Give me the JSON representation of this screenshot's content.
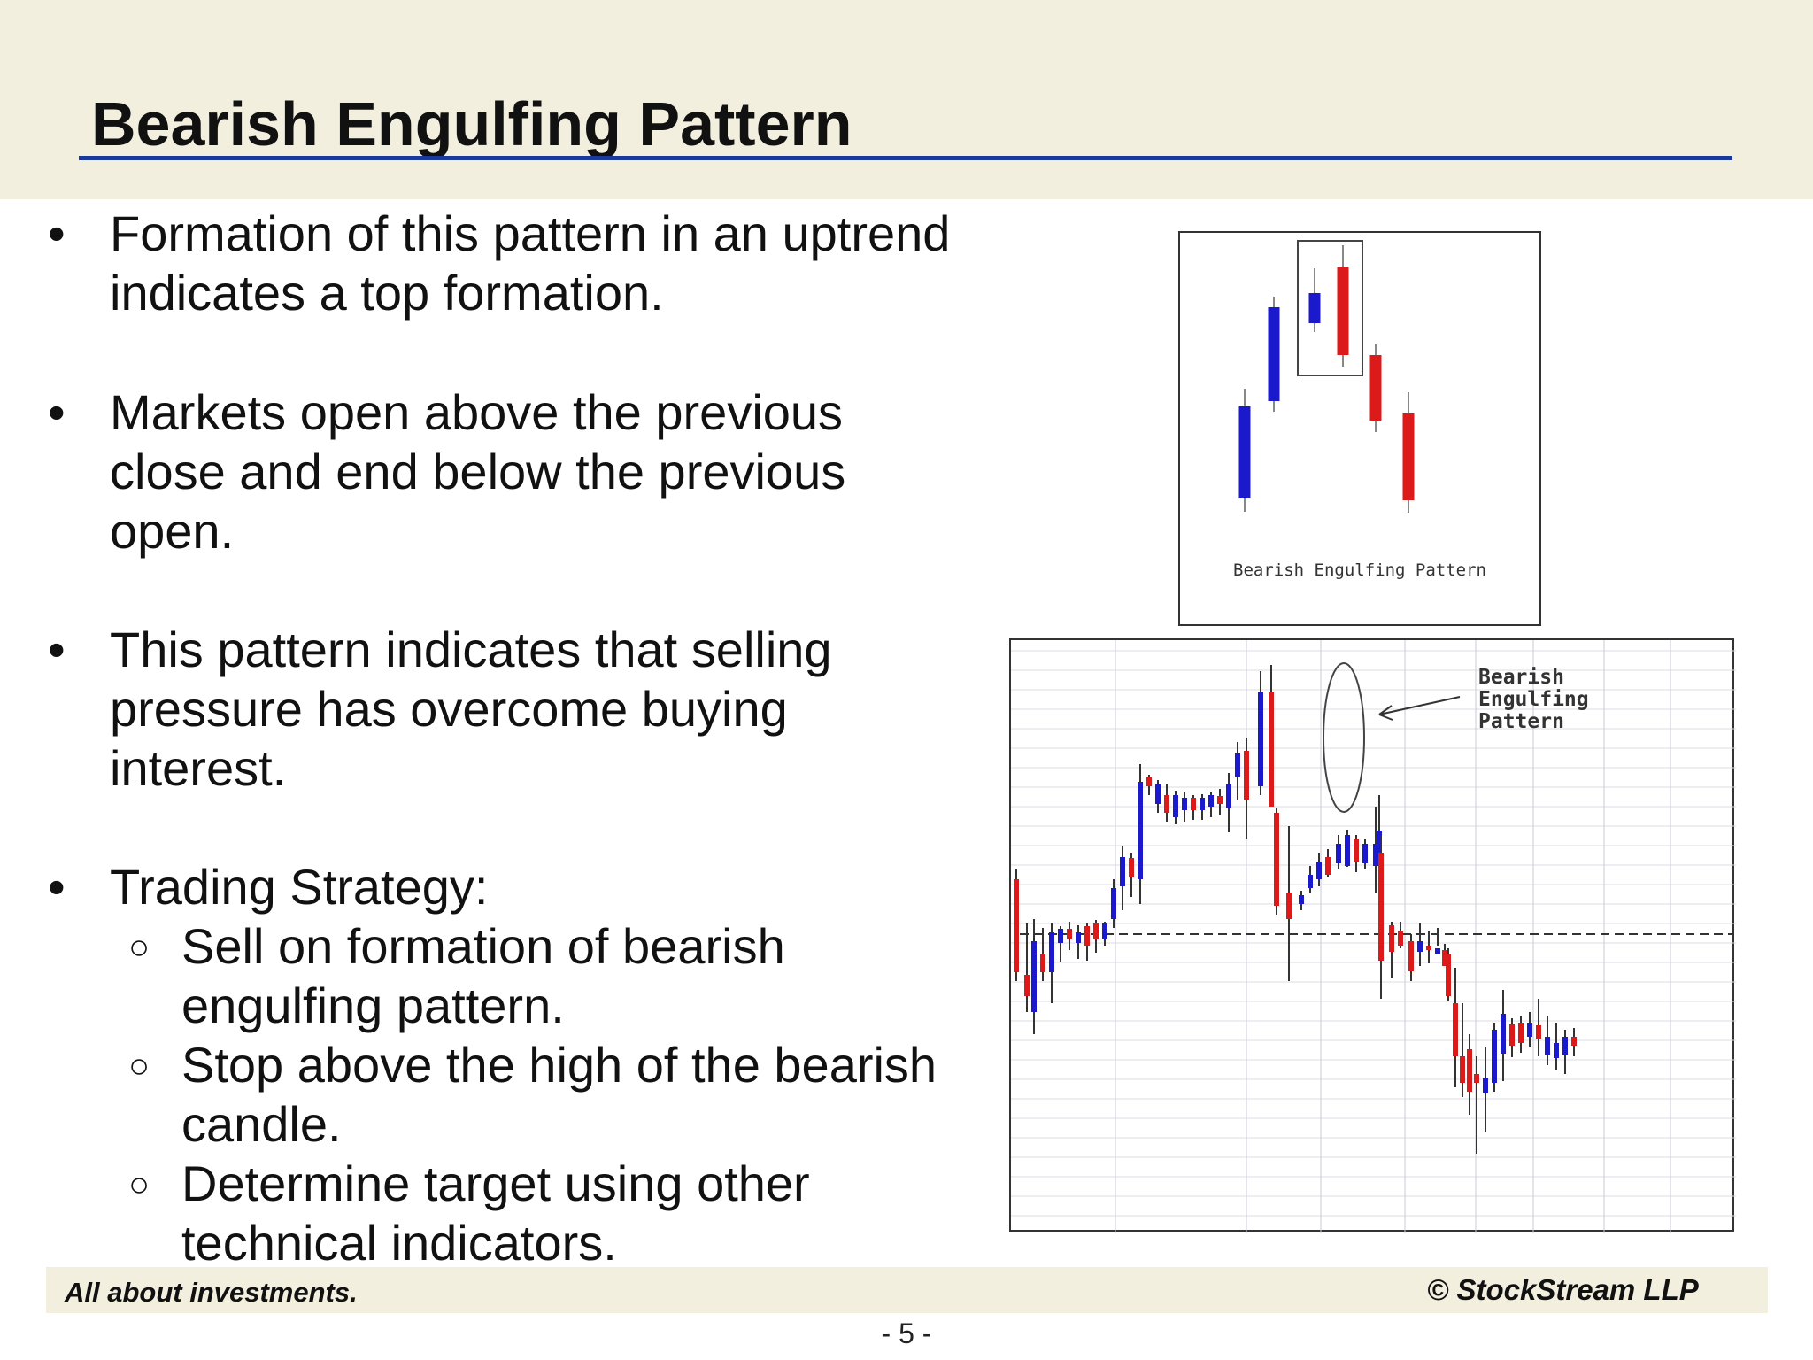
{
  "slide": {
    "title": "Bearish Engulfing Pattern",
    "bullets": [
      {
        "lines": [
          "Formation of this pattern in an uptrend",
          "indicates a top formation."
        ]
      },
      {
        "lines": [
          "Markets open above the previous",
          "close and end below the previous",
          "open."
        ]
      },
      {
        "lines": [
          "This pattern indicates that selling",
          "pressure has overcome buying",
          "interest."
        ]
      },
      {
        "lines": [
          "Trading Strategy:"
        ]
      }
    ],
    "sub_bullets": [
      {
        "lines": [
          "Sell on formation of bearish",
          "engulfing pattern."
        ]
      },
      {
        "lines": [
          "Stop above the high of the bearish",
          "candle."
        ]
      },
      {
        "lines": [
          "Determine target using other",
          "technical indicators."
        ]
      }
    ],
    "bullet_glyph": "•",
    "sub_bullet_glyph": "○"
  },
  "figures": {
    "diagram_caption": "Bearish Engulfing Pattern",
    "chart_annotation": [
      "Bearish",
      "Engulfing",
      "Pattern"
    ]
  },
  "footer": {
    "left": "All about investments.",
    "right": "© StockStream LLP",
    "page_number": "- 5 -"
  },
  "colors": {
    "bullish": "#1a1acc",
    "bearish": "#dd1a1a",
    "title_rule": "#1a3a9a",
    "band": "#f3efdf"
  }
}
